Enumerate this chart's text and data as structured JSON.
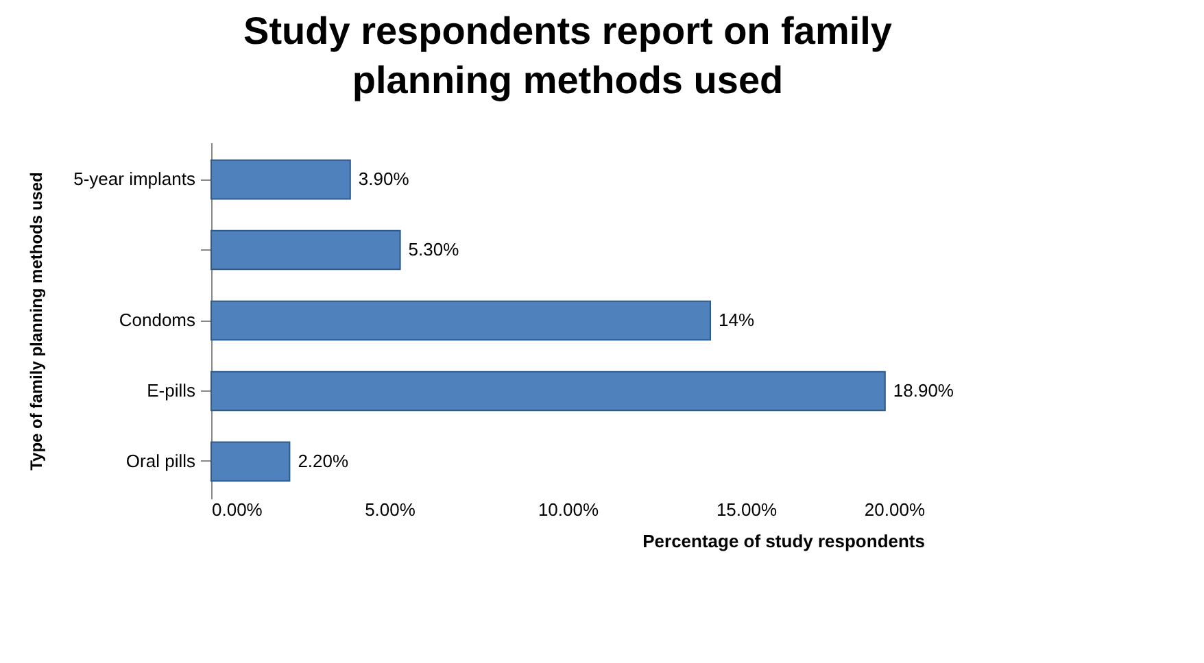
{
  "chart_data": {
    "type": "bar",
    "orientation": "horizontal",
    "title": "Study respondents report on family planning methods used",
    "xlabel": "Percentage of study respondents",
    "ylabel": "Type of family planning methods used",
    "categories": [
      "5-year implants",
      null,
      "Condoms",
      "E-pills",
      "Oral pills"
    ],
    "values": [
      3.9,
      5.3,
      14,
      18.9,
      2.2
    ],
    "value_labels": [
      "3.90%",
      "5.30%",
      "14%",
      "18.90%",
      "2.20%"
    ],
    "color": "#4f81bd",
    "xlim": [
      0,
      20
    ],
    "xticks": [
      {
        "value": 0,
        "label": "0.00%"
      },
      {
        "value": 5,
        "label": "5.00%"
      },
      {
        "value": 10,
        "label": "10.00%"
      },
      {
        "value": 15,
        "label": "15.00%"
      },
      {
        "value": 20,
        "label": "20.00%"
      }
    ],
    "grid": false
  }
}
